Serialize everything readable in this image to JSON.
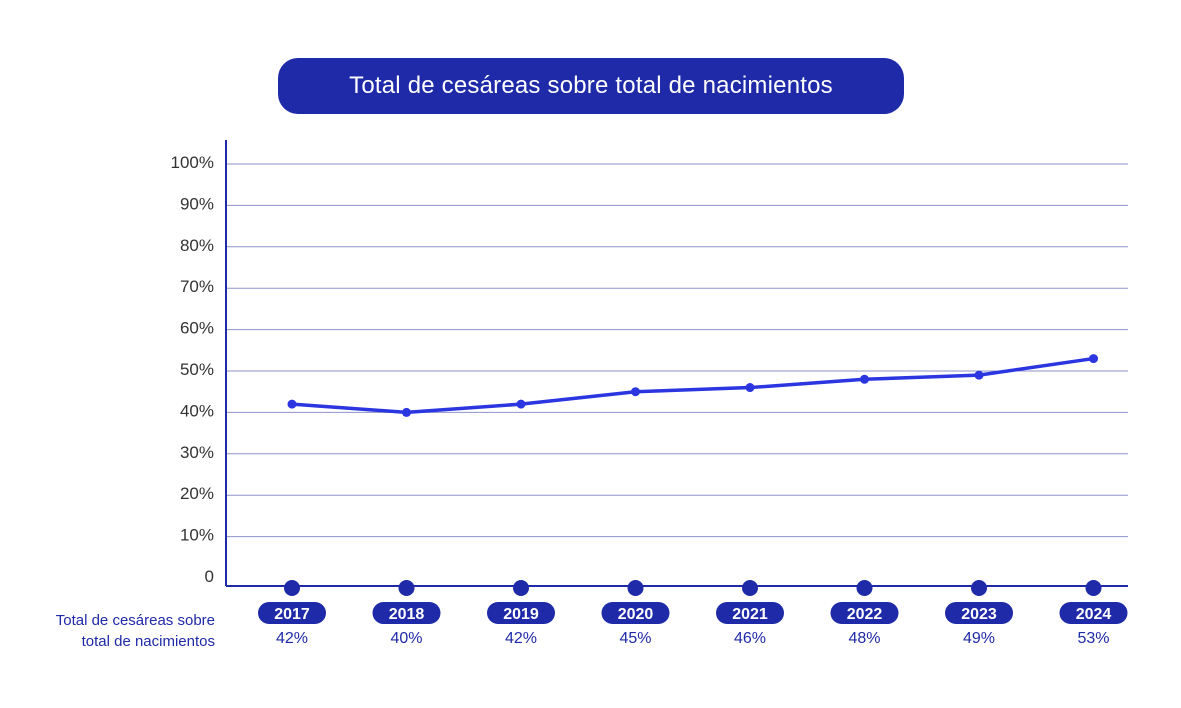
{
  "chart_data": {
    "type": "line",
    "title": "Total de cesáreas sobre total de nacimientos",
    "categories": [
      "2017",
      "2018",
      "2019",
      "2020",
      "2021",
      "2022",
      "2023",
      "2024"
    ],
    "series": [
      {
        "name": "Total de cesáreas sobre total de nacimientos",
        "values": [
          42,
          40,
          42,
          45,
          46,
          48,
          49,
          53
        ]
      }
    ],
    "data_labels": [
      "42%",
      "40%",
      "42%",
      "45%",
      "46%",
      "48%",
      "49%",
      "53%"
    ],
    "y_ticks": [
      "0",
      "10%",
      "20%",
      "30%",
      "40%",
      "50%",
      "60%",
      "70%",
      "80%",
      "90%",
      "100%"
    ],
    "ylim": [
      0,
      100
    ],
    "grid": true,
    "colors": {
      "line": "#2b35e0",
      "accent": "#1f2aa8",
      "grid": "#8f93c9"
    }
  },
  "row_label_line1": "Total de cesáreas sobre",
  "row_label_line2": "total de nacimientos"
}
